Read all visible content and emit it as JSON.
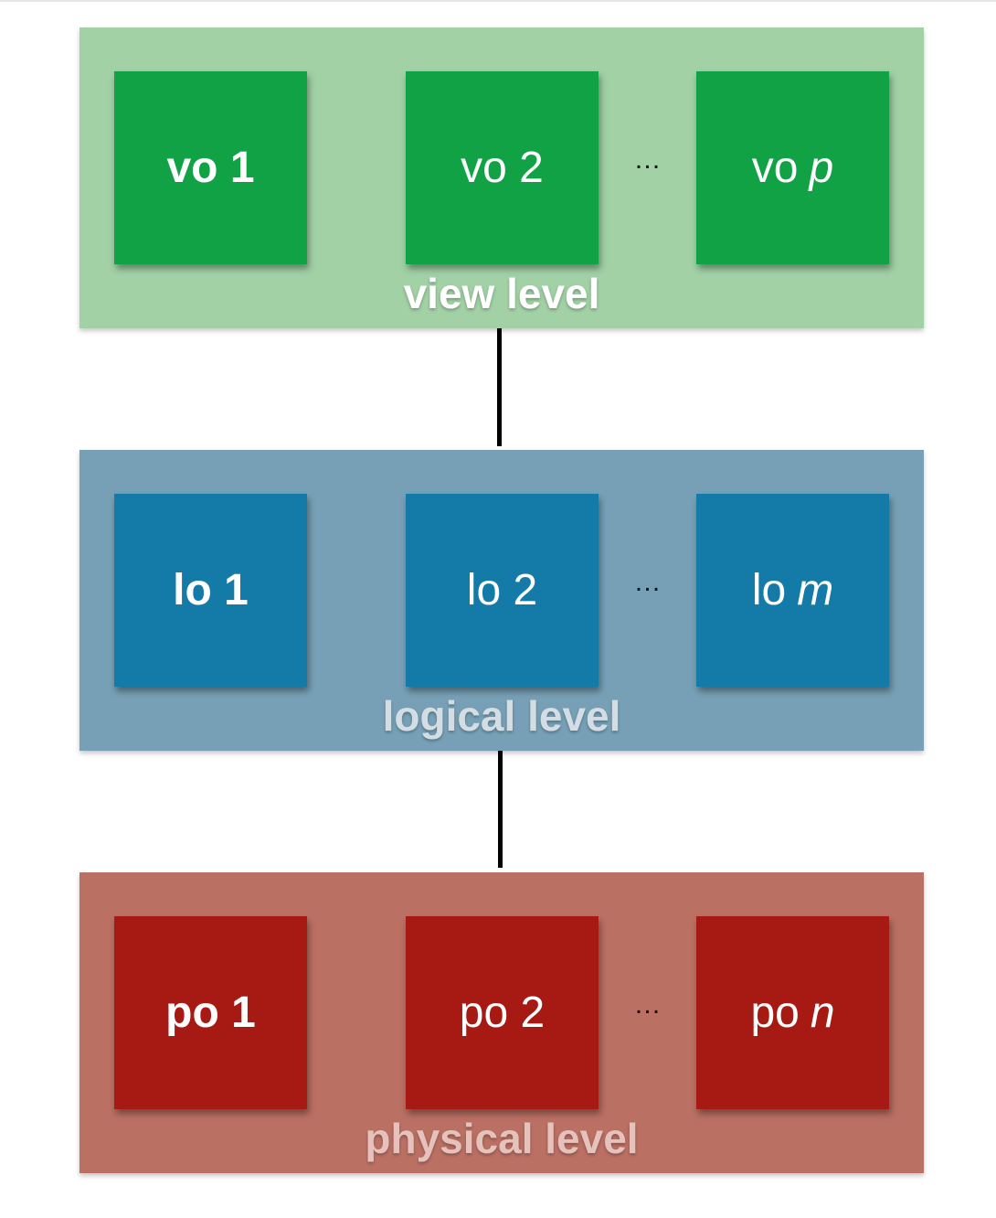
{
  "levels": {
    "view": {
      "label": "view level",
      "color": "#a2d1a6",
      "box_color": "#12a246",
      "boxes": [
        {
          "prefix": "vo",
          "suffix": "1"
        },
        {
          "prefix": "vo",
          "suffix": "2"
        },
        {
          "prefix": "vo",
          "suffix": "p"
        }
      ],
      "ellipsis": "…"
    },
    "logical": {
      "label": "logical level",
      "color": "#77a0b6",
      "box_color": "#147aa8",
      "boxes": [
        {
          "prefix": "lo",
          "suffix": "1"
        },
        {
          "prefix": "lo",
          "suffix": "2"
        },
        {
          "prefix": "lo",
          "suffix": "m"
        }
      ],
      "ellipsis": "…"
    },
    "physical": {
      "label": "physical level",
      "color": "#bb7064",
      "box_color": "#a71a13",
      "boxes": [
        {
          "prefix": "po",
          "suffix": "1"
        },
        {
          "prefix": "po",
          "suffix": "2"
        },
        {
          "prefix": "po",
          "suffix": "n"
        }
      ],
      "ellipsis": "…"
    }
  }
}
